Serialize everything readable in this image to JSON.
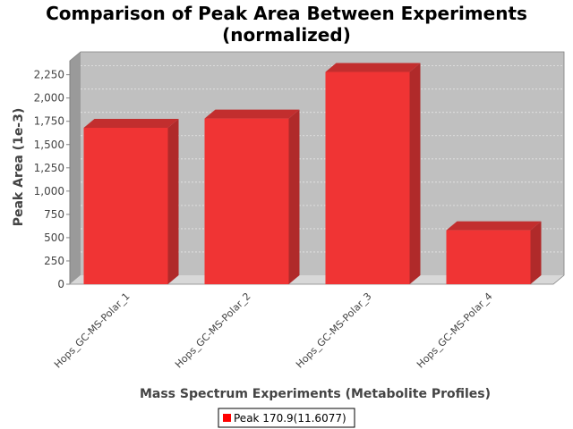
{
  "chart_data": {
    "type": "bar",
    "title_lines": [
      "Comparison of Peak Area Between Experiments",
      "(normalized)"
    ],
    "xlabel": "Mass Spectrum Experiments (Metabolite Profiles)",
    "ylabel": "Peak Area (1e-3)",
    "categories": [
      "Hops_GC-MS-Polar_1",
      "Hops_GC-MS-Polar_2",
      "Hops_GC-MS-Polar_3",
      "Hops_GC-MS-Polar_4"
    ],
    "series": [
      {
        "name": "Peak 170.9(11.6077)",
        "values": [
          1680,
          1780,
          2280,
          580
        ]
      }
    ],
    "ylim": [
      0,
      2400
    ],
    "yticks": [
      0,
      250,
      500,
      750,
      1000,
      1250,
      1500,
      1750,
      2000,
      2250
    ],
    "ytick_labels": [
      "0",
      "250",
      "500",
      "750",
      "1,000",
      "1,250",
      "1,500",
      "1,750",
      "2,000",
      "2,250"
    ],
    "grid": true,
    "legend": "bottom-center",
    "colors": {
      "bar_front": "#f03434",
      "bar_side": "#b02a2a",
      "bar_top": "#c22e2e",
      "plot_back": "#c0c0c0",
      "plot_side": "#9a9a9a",
      "plot_floor": "#d8d8d8",
      "grid": "#e6e6e6",
      "legend_swatch": "#ff0000"
    }
  }
}
